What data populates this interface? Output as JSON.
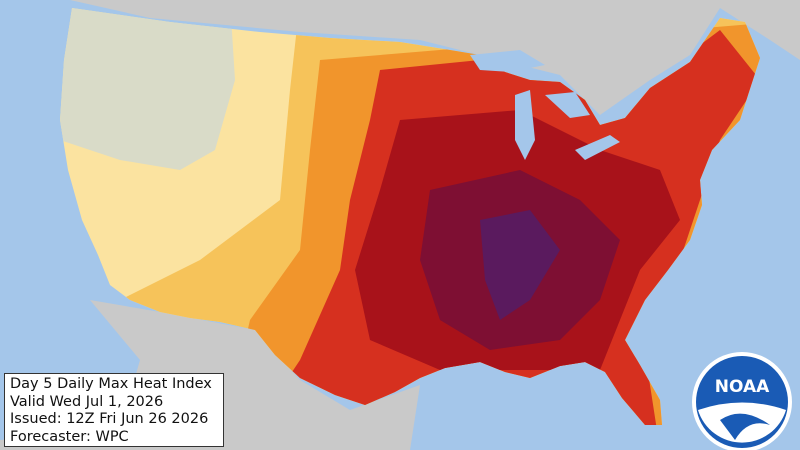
{
  "info_box": {
    "title": "Day 5 Daily Max Heat Index",
    "valid": "Valid Wed Jul 1, 2026",
    "issued": "Issued: 12Z Fri Jun 26 2026",
    "forecaster": "Forecaster: WPC"
  },
  "logo": {
    "text": "NOAA"
  }
}
